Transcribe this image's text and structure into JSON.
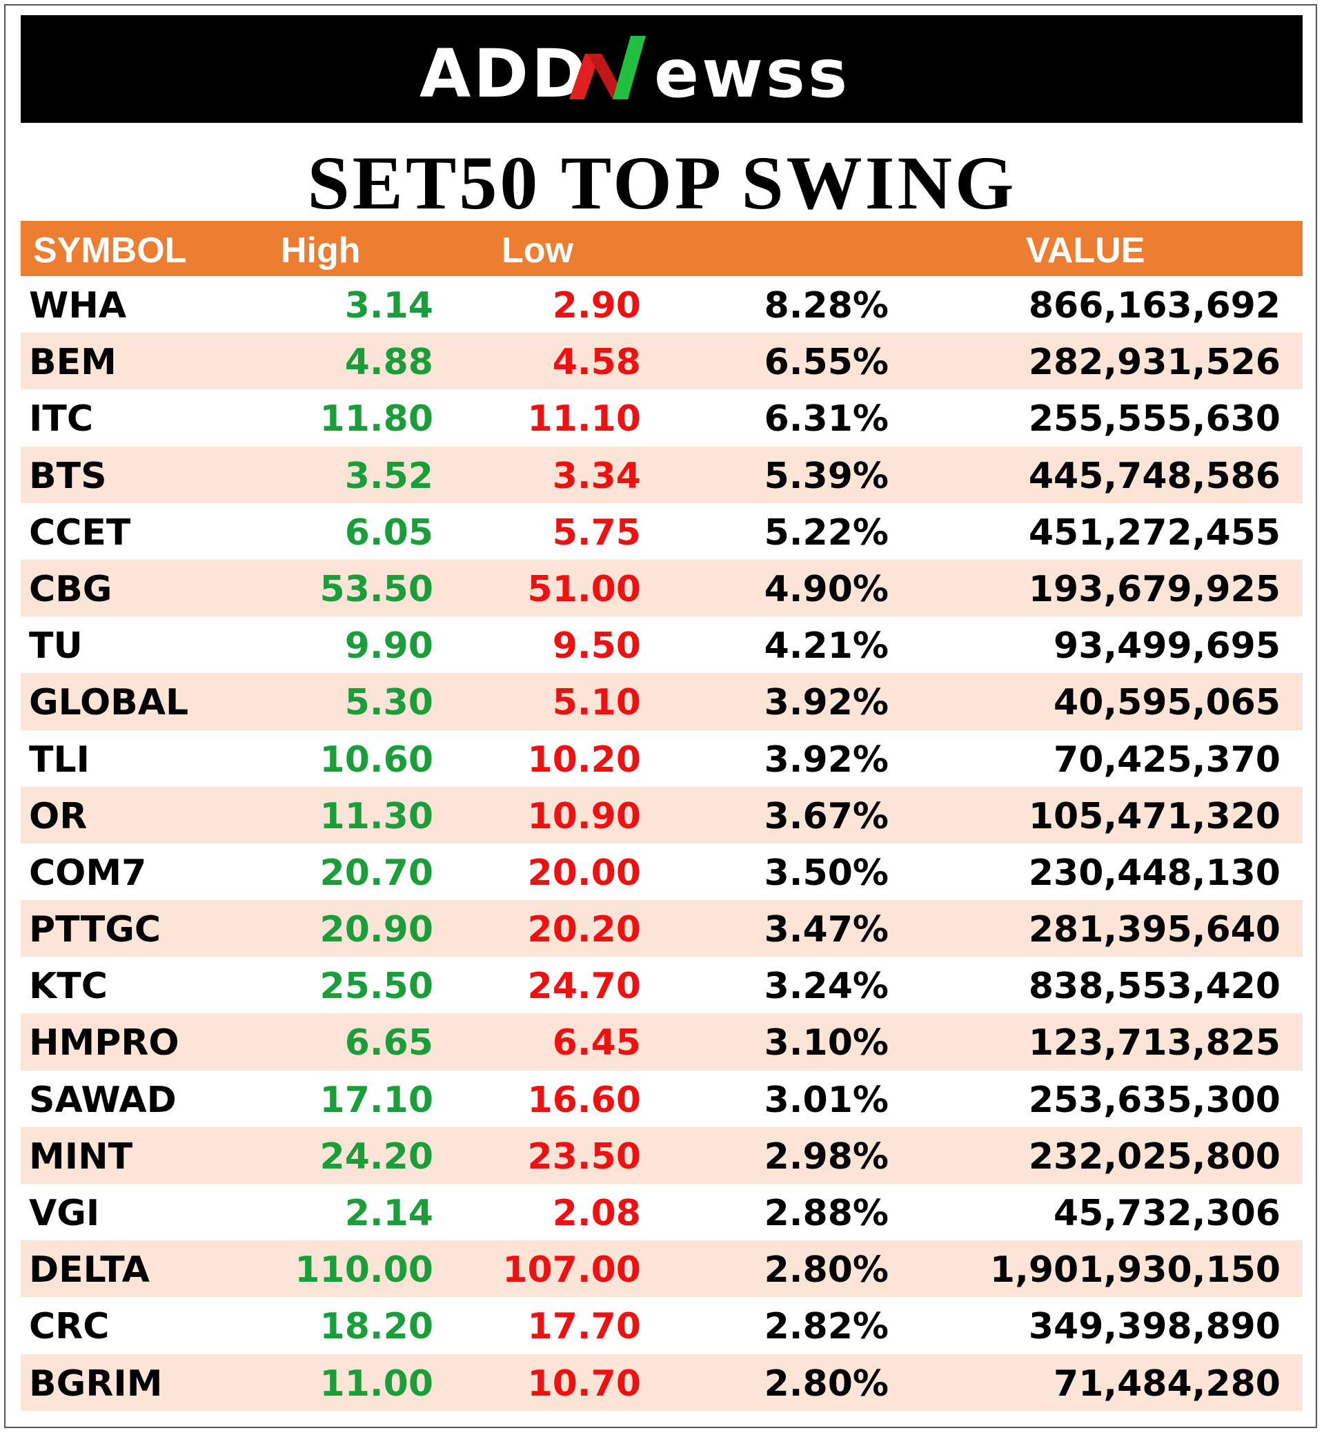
{
  "logo": {
    "text_left": "ADD",
    "text_right": "ewss",
    "accent_colors": [
      "#e02020",
      "#22c040"
    ]
  },
  "title": "SET50 TOP SWING",
  "table": {
    "headers": {
      "symbol": "SYMBOL",
      "high": "High",
      "low": "Low",
      "pct": "",
      "value": "VALUE"
    },
    "rows": [
      {
        "symbol": "WHA",
        "high": "3.14",
        "low": "2.90",
        "pct": "8.28%",
        "value": "866,163,692"
      },
      {
        "symbol": "BEM",
        "high": "4.88",
        "low": "4.58",
        "pct": "6.55%",
        "value": "282,931,526"
      },
      {
        "symbol": "ITC",
        "high": "11.80",
        "low": "11.10",
        "pct": "6.31%",
        "value": "255,555,630"
      },
      {
        "symbol": "BTS",
        "high": "3.52",
        "low": "3.34",
        "pct": "5.39%",
        "value": "445,748,586"
      },
      {
        "symbol": "CCET",
        "high": "6.05",
        "low": "5.75",
        "pct": "5.22%",
        "value": "451,272,455"
      },
      {
        "symbol": "CBG",
        "high": "53.50",
        "low": "51.00",
        "pct": "4.90%",
        "value": "193,679,925"
      },
      {
        "symbol": "TU",
        "high": "9.90",
        "low": "9.50",
        "pct": "4.21%",
        "value": "93,499,695"
      },
      {
        "symbol": "GLOBAL",
        "high": "5.30",
        "low": "5.10",
        "pct": "3.92%",
        "value": "40,595,065"
      },
      {
        "symbol": "TLI",
        "high": "10.60",
        "low": "10.20",
        "pct": "3.92%",
        "value": "70,425,370"
      },
      {
        "symbol": "OR",
        "high": "11.30",
        "low": "10.90",
        "pct": "3.67%",
        "value": "105,471,320"
      },
      {
        "symbol": "COM7",
        "high": "20.70",
        "low": "20.00",
        "pct": "3.50%",
        "value": "230,448,130"
      },
      {
        "symbol": "PTTGC",
        "high": "20.90",
        "low": "20.20",
        "pct": "3.47%",
        "value": "281,395,640"
      },
      {
        "symbol": "KTC",
        "high": "25.50",
        "low": "24.70",
        "pct": "3.24%",
        "value": "838,553,420"
      },
      {
        "symbol": "HMPRO",
        "high": "6.65",
        "low": "6.45",
        "pct": "3.10%",
        "value": "123,713,825"
      },
      {
        "symbol": "SAWAD",
        "high": "17.10",
        "low": "16.60",
        "pct": "3.01%",
        "value": "253,635,300"
      },
      {
        "symbol": "MINT",
        "high": "24.20",
        "low": "23.50",
        "pct": "2.98%",
        "value": "232,025,800"
      },
      {
        "symbol": "VGI",
        "high": "2.14",
        "low": "2.08",
        "pct": "2.88%",
        "value": "45,732,306"
      },
      {
        "symbol": "DELTA",
        "high": "110.00",
        "low": "107.00",
        "pct": "2.80%",
        "value": "1,901,930,150"
      },
      {
        "symbol": "CRC",
        "high": "18.20",
        "low": "17.70",
        "pct": "2.82%",
        "value": "349,398,890"
      },
      {
        "symbol": "BGRIM",
        "high": "11.00",
        "low": "10.70",
        "pct": "2.80%",
        "value": "71,484,280"
      }
    ]
  },
  "colors": {
    "header_bg": "#ed7d31",
    "shaded_row_bg": "#fce4d6",
    "high_text": "#1a9e3a",
    "low_text": "#ee1111",
    "banner_bg": "#000000"
  }
}
